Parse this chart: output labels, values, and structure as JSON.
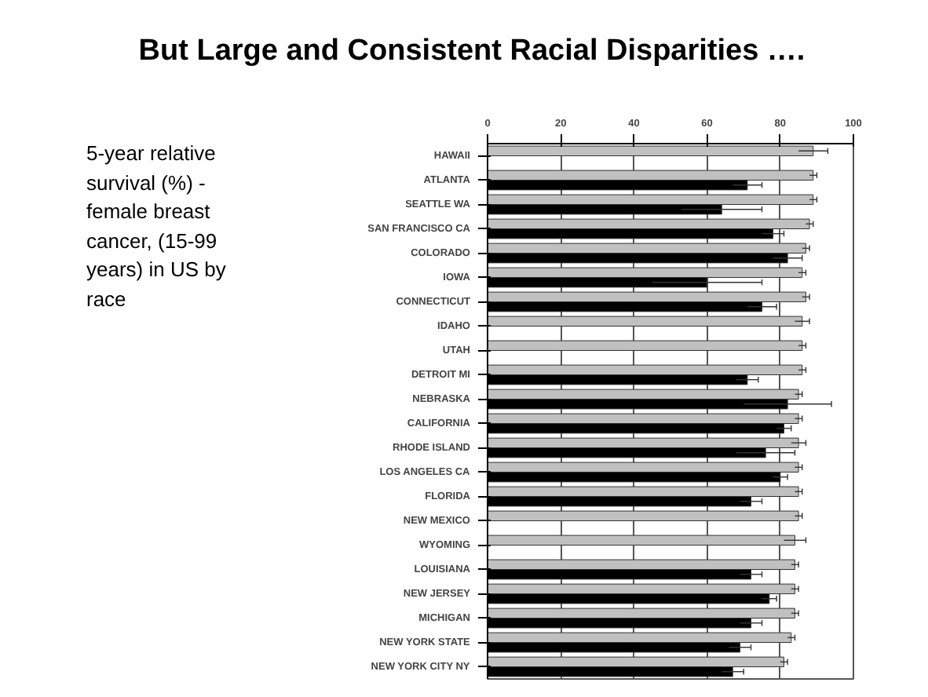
{
  "chart_data": {
    "type": "bar",
    "orientation": "horizontal",
    "title": "But Large and Consistent Racial Disparities ….",
    "subtitle": "5-year relative survival (%) - female breast cancer, (15-99 years) in US by race",
    "categories": [
      "HAWAII",
      "ATLANTA",
      "SEATTLE WA",
      "SAN FRANCISCO CA",
      "COLORADO",
      "IOWA",
      "CONNECTICUT",
      "IDAHO",
      "UTAH",
      "DETROIT MI",
      "NEBRASKA",
      "CALIFORNIA",
      "RHODE ISLAND",
      "LOS ANGELES CA",
      "FLORIDA",
      "NEW MEXICO",
      "WYOMING",
      "LOUISIANA",
      "NEW JERSEY",
      "MICHIGAN",
      "NEW YORK STATE",
      "NEW YORK CITY NY"
    ],
    "series": [
      {
        "color": "#c0c0c0",
        "values": [
          89,
          89,
          89,
          88,
          87,
          86,
          87,
          86,
          86,
          86,
          85,
          85,
          85,
          85,
          85,
          85,
          84,
          84,
          84,
          84,
          83,
          81
        ],
        "errors": [
          4,
          1,
          1,
          1,
          1,
          1,
          1,
          2,
          1,
          1,
          1,
          1,
          2,
          1,
          1,
          1,
          3,
          1,
          1,
          1,
          1,
          1
        ]
      },
      {
        "color": "#000000",
        "values": [
          null,
          71,
          64,
          78,
          82,
          60,
          75,
          null,
          null,
          71,
          82,
          81,
          76,
          80,
          72,
          null,
          null,
          72,
          77,
          72,
          69,
          67
        ],
        "errors": [
          null,
          4,
          11,
          3,
          4,
          15,
          4,
          null,
          null,
          3,
          12,
          2,
          8,
          2,
          3,
          null,
          null,
          3,
          2,
          3,
          3,
          3
        ]
      }
    ],
    "xlim": [
      0,
      100
    ],
    "xticks": [
      0,
      20,
      40,
      60,
      80,
      100
    ],
    "grid": "x"
  }
}
